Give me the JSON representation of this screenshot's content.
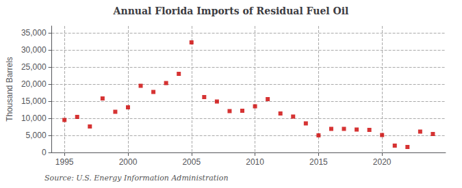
{
  "chart_data": {
    "type": "scatter",
    "title": "Annual Florida Imports of Residual Fuel Oil",
    "ylabel": "Thousand Barrels",
    "annotations": [
      "Source: U.S. Energy Information Administration"
    ],
    "x": [
      1995,
      1996,
      1997,
      1998,
      1999,
      2000,
      2001,
      2002,
      2003,
      2004,
      2005,
      2006,
      2007,
      2008,
      2009,
      2010,
      2011,
      2012,
      2013,
      2014,
      2015,
      2016,
      2017,
      2018,
      2019,
      2020,
      2021,
      2022,
      2023,
      2024
    ],
    "values": [
      9500,
      10400,
      7600,
      15800,
      11900,
      13200,
      19500,
      17700,
      20300,
      23000,
      32200,
      16200,
      14900,
      12100,
      12200,
      13500,
      15600,
      11400,
      10500,
      8500,
      5000,
      6900,
      6900,
      6700,
      6600,
      5100,
      2000,
      1600,
      6100,
      5400
    ],
    "color": "#cc0000",
    "marker": "square",
    "xlim": [
      1994,
      2025
    ],
    "ylim": [
      0,
      37000
    ],
    "xticks": [
      1995,
      2000,
      2005,
      2010,
      2015,
      2020
    ],
    "yticks": [
      0,
      {
        "value": 5000,
        "label": "5,000"
      },
      {
        "value": 10000,
        "label": "10,000"
      },
      {
        "value": 15000,
        "label": "15,000"
      },
      {
        "value": 20000,
        "label": "20,000"
      },
      {
        "value": 25000,
        "label": "25,000"
      },
      {
        "value": 30000,
        "label": "30,000"
      },
      {
        "value": 35000,
        "label": "35,000"
      }
    ],
    "grid": true
  }
}
